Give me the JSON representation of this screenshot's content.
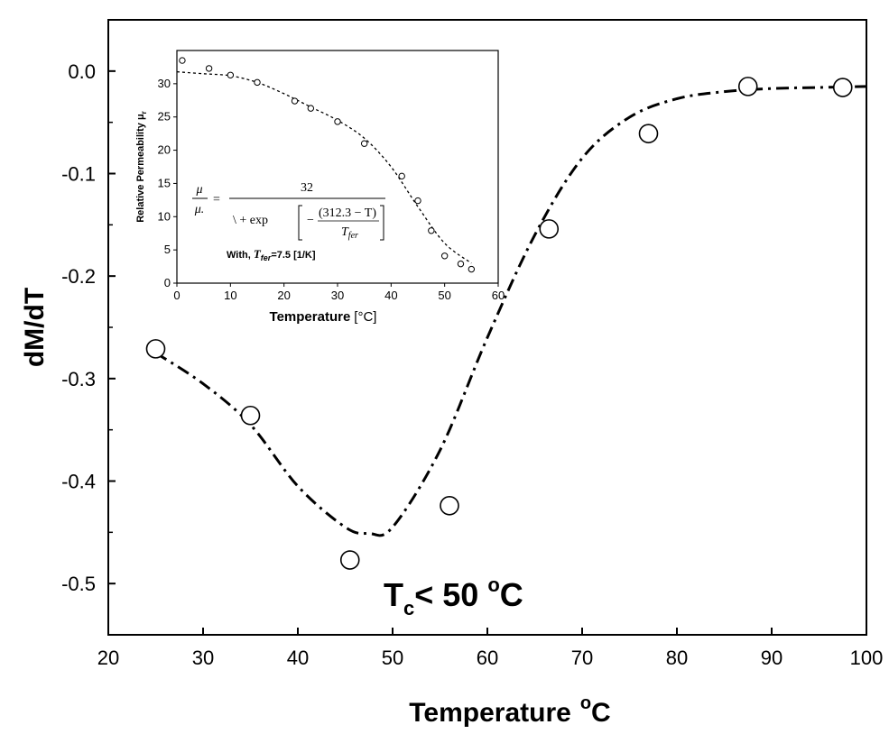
{
  "chart_data": [
    {
      "type": "scatter",
      "xlabel": "Temperature",
      "xlabel_unit": "°C",
      "ylabel": "dM/dT",
      "xlim": [
        20,
        100
      ],
      "ylim": [
        -0.55,
        0.05
      ],
      "xticks": [
        20,
        30,
        40,
        50,
        60,
        70,
        80,
        90,
        100
      ],
      "yticks": [
        "0.0",
        "-0.1",
        "-0.2",
        "-0.3",
        "-0.4",
        "-0.5"
      ],
      "ytick_values": [
        0.0,
        -0.1,
        -0.2,
        -0.3,
        -0.4,
        -0.5
      ],
      "annotation": {
        "prefix": "T",
        "subscript": "c",
        "middle": "< 50 ",
        "degree": "o",
        "suffix": "C"
      },
      "points": {
        "x": [
          25,
          35,
          45.5,
          56,
          66.5,
          77,
          87.5,
          97.5
        ],
        "y": [
          -0.271,
          -0.336,
          -0.477,
          -0.424,
          -0.154,
          -0.061,
          -0.015,
          -0.016
        ]
      },
      "fit_curve": {
        "style": "dash-dot",
        "x": [
          25,
          30,
          35,
          40,
          45,
          47.5,
          50,
          55,
          60,
          65,
          70,
          75,
          80,
          85,
          90,
          95,
          100
        ],
        "y": [
          -0.275,
          -0.305,
          -0.345,
          -0.405,
          -0.445,
          -0.451,
          -0.445,
          -0.37,
          -0.26,
          -0.16,
          -0.085,
          -0.045,
          -0.027,
          -0.02,
          -0.017,
          -0.016,
          -0.015
        ]
      }
    },
    {
      "type": "scatter",
      "xlabel": "Temperature",
      "xlabel_unit": "[°C]",
      "ylabel": "Relative Permeability μ",
      "ylabel_sub": "r",
      "xlim": [
        0,
        60
      ],
      "ylim": [
        0,
        35
      ],
      "xticks": [
        0,
        10,
        20,
        30,
        40,
        50,
        60
      ],
      "yticks": [
        0,
        5,
        10,
        15,
        20,
        25,
        30
      ],
      "formula": {
        "lhs_num": "μ",
        "lhs_den": "μ.",
        "equals": "=",
        "numerator": "32",
        "denominator": "\\ + exp",
        "inner_num": "(312.3 − T)",
        "inner_sign": "−",
        "inner_den": "T",
        "inner_den_sub": "fer"
      },
      "note": {
        "prefix": "With, ",
        "var": "T",
        "sub": "fer",
        "suffix": "=7.5 [1/K]"
      },
      "points": {
        "x": [
          1,
          6,
          10,
          15,
          22,
          25,
          30,
          35,
          42,
          45,
          47.5,
          50,
          53,
          55
        ],
        "y": [
          33.5,
          32.3,
          31.3,
          30.2,
          27.4,
          26.3,
          24.3,
          21,
          16.1,
          12.4,
          7.9,
          4.1,
          2.9,
          2.1
        ]
      },
      "fit_curve": {
        "style": "dotted",
        "x": [
          0,
          5,
          10,
          15,
          20,
          25,
          30,
          35,
          40,
          45,
          50,
          55
        ],
        "y": [
          31.8,
          31.5,
          31.2,
          30.2,
          28.5,
          26.5,
          24.5,
          21.8,
          17.5,
          11.5,
          6,
          3
        ]
      }
    }
  ]
}
